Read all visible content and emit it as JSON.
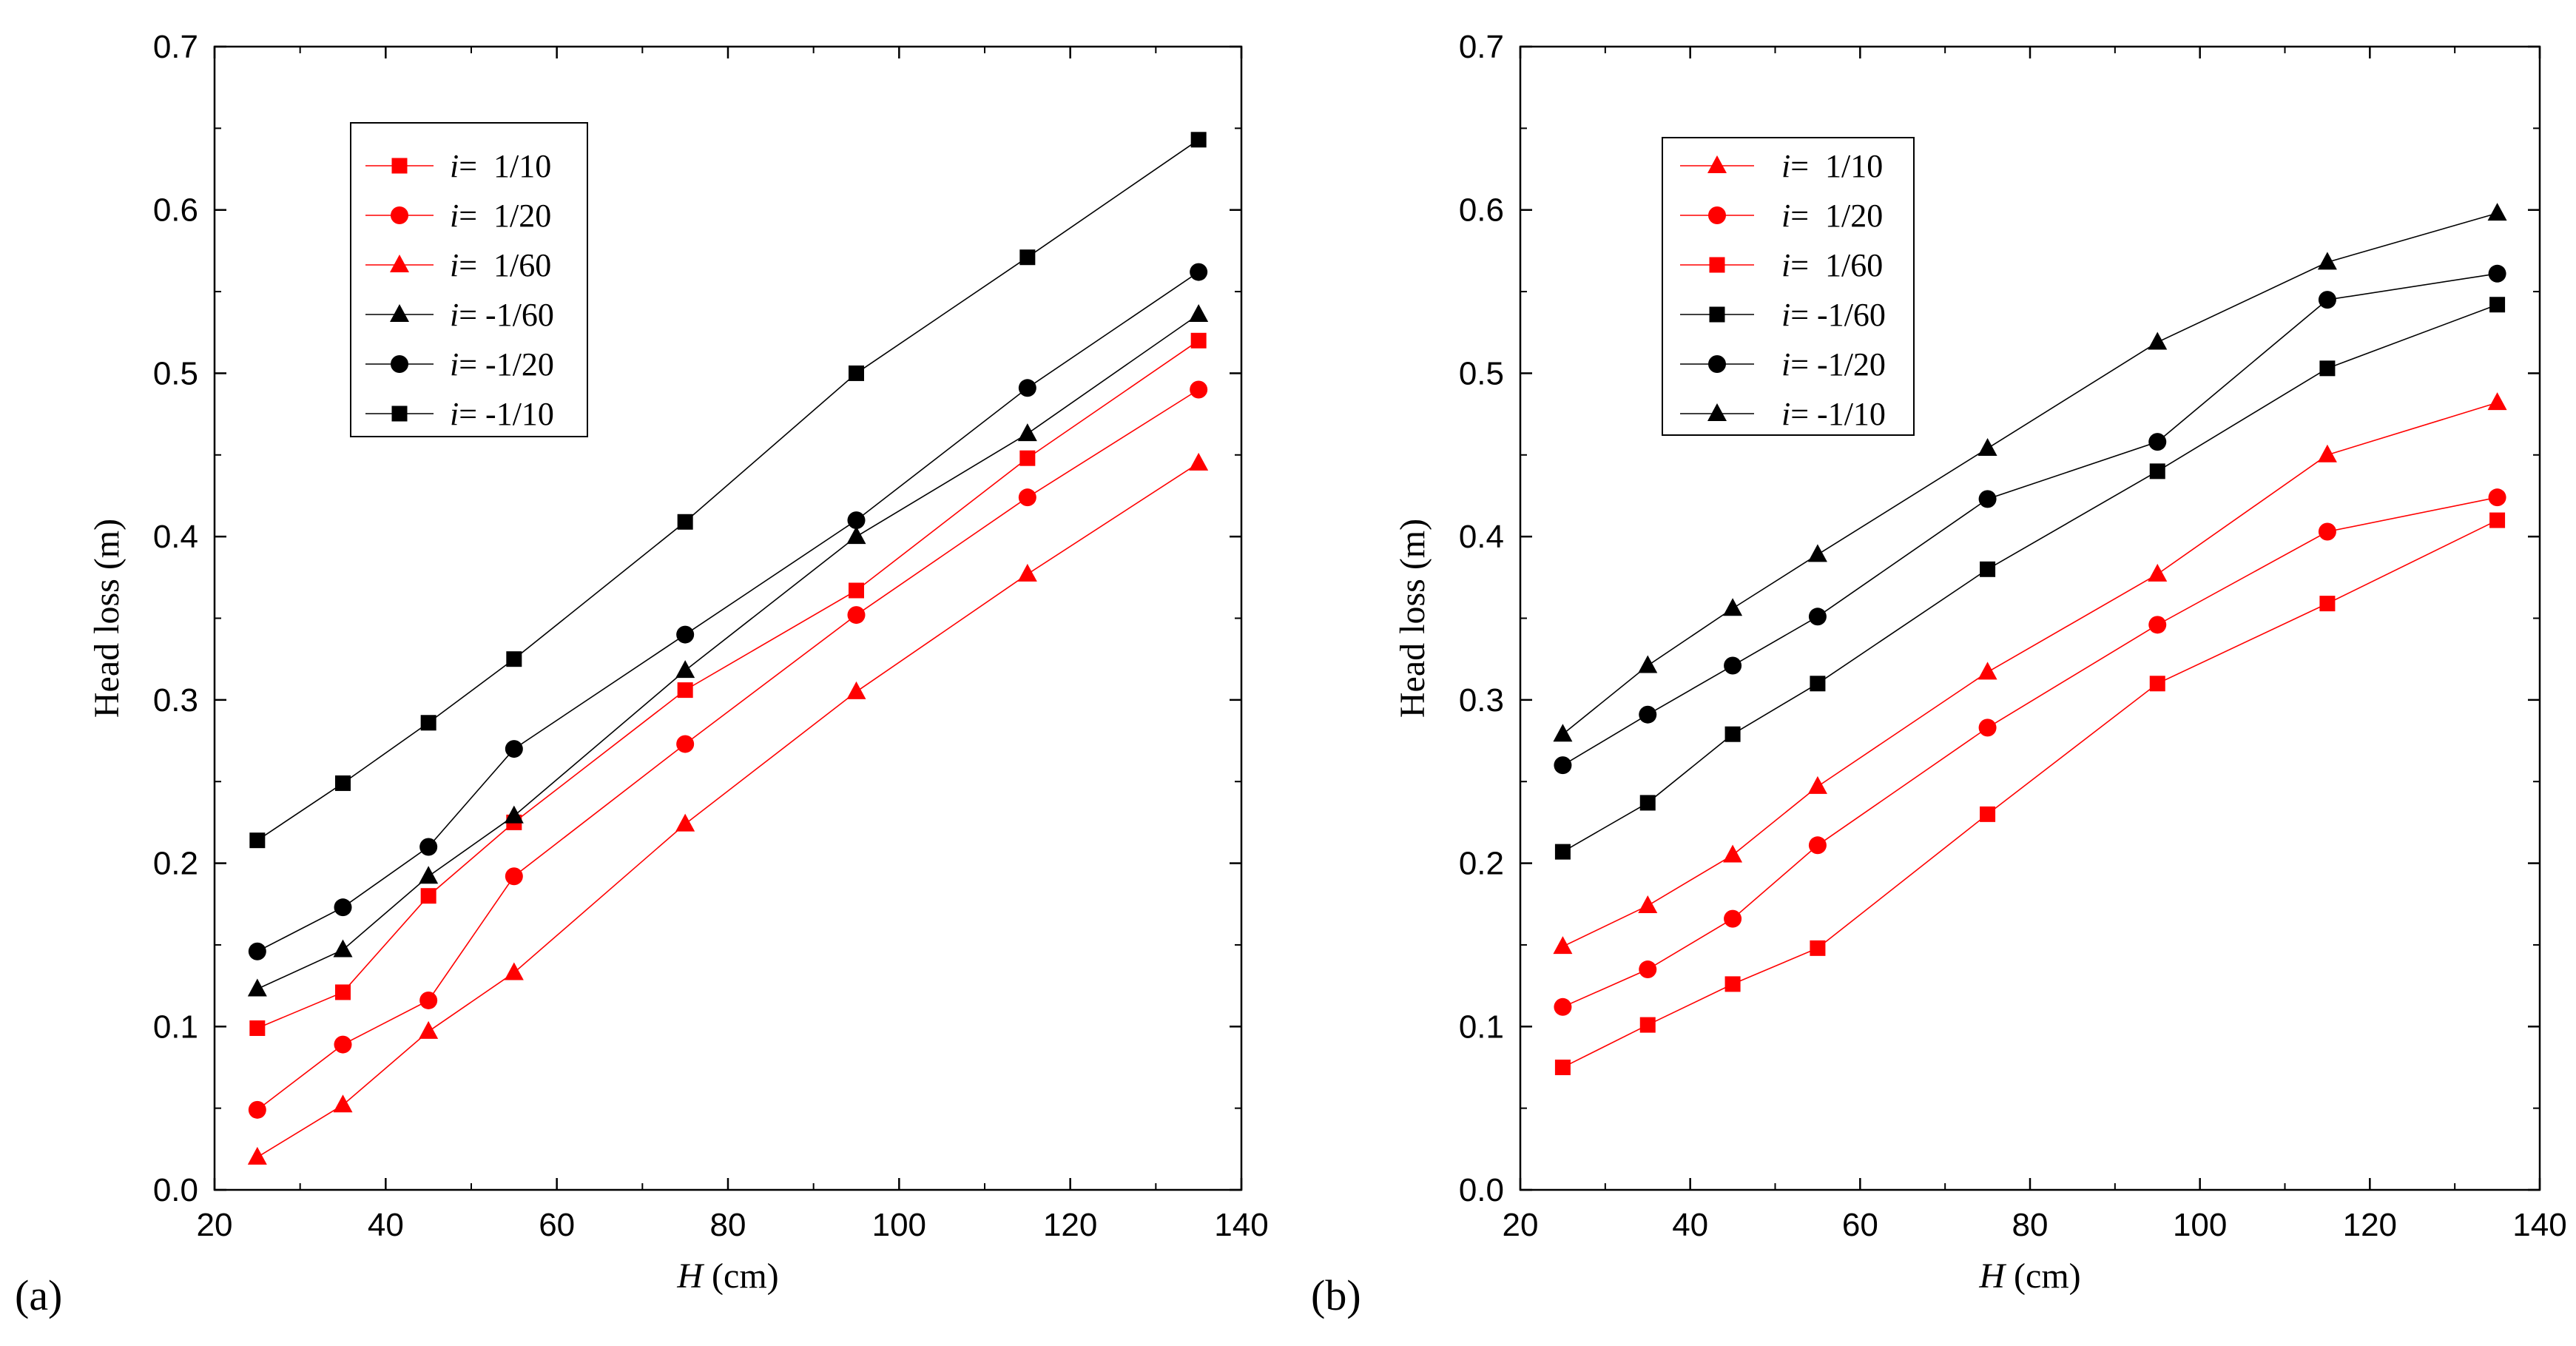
{
  "figure": {
    "panel_labels": [
      "(a)",
      "(b)"
    ]
  },
  "chart_data": [
    {
      "type": "line",
      "panel": "(a)",
      "title": "",
      "xlabel": "H (cm)",
      "xlabel_italic": "H",
      "xlabel_unit": "(cm)",
      "ylabel": "Head loss (m)",
      "xlim": [
        20,
        140
      ],
      "ylim": [
        0.0,
        0.7
      ],
      "xticks": [
        20,
        40,
        60,
        80,
        100,
        120,
        140
      ],
      "xtick_labels": [
        "20",
        "40",
        "60",
        "80",
        "100",
        "120",
        "140"
      ],
      "yticks": [
        0.0,
        0.1,
        0.2,
        0.3,
        0.4,
        0.5,
        0.6,
        0.7
      ],
      "ytick_labels": [
        "0.0",
        "0.1",
        "0.2",
        "0.3",
        "0.4",
        "0.5",
        "0.6",
        "0.7"
      ],
      "grid": false,
      "legend_position": "top-left",
      "x": [
        25,
        35,
        45,
        55,
        75,
        95,
        115,
        135
      ],
      "series": [
        {
          "name": "i=  1/10",
          "label_var": "i",
          "label_rest": "=  1/10",
          "color": "#ff0000",
          "marker": "square",
          "values": [
            0.099,
            0.121,
            0.18,
            0.225,
            0.306,
            0.367,
            0.448,
            0.52
          ]
        },
        {
          "name": "i=  1/20",
          "label_var": "i",
          "label_rest": "=  1/20",
          "color": "#ff0000",
          "marker": "circle",
          "values": [
            0.049,
            0.089,
            0.116,
            0.192,
            0.273,
            0.352,
            0.424,
            0.49
          ]
        },
        {
          "name": "i=  1/60",
          "label_var": "i",
          "label_rest": "=  1/60",
          "color": "#ff0000",
          "marker": "triangle",
          "values": [
            0.02,
            0.052,
            0.097,
            0.133,
            0.224,
            0.305,
            0.377,
            0.445
          ]
        },
        {
          "name": "i= -1/60",
          "label_var": "i",
          "label_rest": "= -1/60",
          "color": "#000000",
          "marker": "triangle",
          "values": [
            0.123,
            0.147,
            0.192,
            0.229,
            0.318,
            0.4,
            0.463,
            0.536
          ]
        },
        {
          "name": "i= -1/20",
          "label_var": "i",
          "label_rest": "= -1/20",
          "color": "#000000",
          "marker": "circle",
          "values": [
            0.146,
            0.173,
            0.21,
            0.27,
            0.34,
            0.41,
            0.491,
            0.562
          ]
        },
        {
          "name": "i= -1/10",
          "label_var": "i",
          "label_rest": "= -1/10",
          "color": "#000000",
          "marker": "square",
          "values": [
            0.214,
            0.249,
            0.286,
            0.325,
            0.409,
            0.5,
            0.571,
            0.643
          ]
        }
      ]
    },
    {
      "type": "line",
      "panel": "(b)",
      "title": "",
      "xlabel": "H (cm)",
      "xlabel_italic": "H",
      "xlabel_unit": "(cm)",
      "ylabel": "Head loss (m)",
      "xlim": [
        20,
        140
      ],
      "ylim": [
        0.0,
        0.7
      ],
      "xticks": [
        20,
        40,
        60,
        80,
        100,
        120,
        140
      ],
      "xtick_labels": [
        "20",
        "40",
        "60",
        "80",
        "100",
        "120",
        "140"
      ],
      "yticks": [
        0.0,
        0.1,
        0.2,
        0.3,
        0.4,
        0.5,
        0.6,
        0.7
      ],
      "ytick_labels": [
        "0.0",
        "0.1",
        "0.2",
        "0.3",
        "0.4",
        "0.5",
        "0.6",
        "0.7"
      ],
      "grid": false,
      "legend_position": "top-left",
      "x": [
        25,
        35,
        45,
        55,
        75,
        95,
        115,
        135
      ],
      "series": [
        {
          "name": "i=  1/10",
          "label_var": "i",
          "label_rest": "=  1/10",
          "color": "#ff0000",
          "marker": "triangle",
          "values": [
            0.149,
            0.174,
            0.205,
            0.247,
            0.317,
            0.377,
            0.45,
            0.482
          ]
        },
        {
          "name": "i=  1/20",
          "label_var": "i",
          "label_rest": "=  1/20",
          "color": "#ff0000",
          "marker": "circle",
          "values": [
            0.112,
            0.135,
            0.166,
            0.211,
            0.283,
            0.346,
            0.403,
            0.424
          ]
        },
        {
          "name": "i=  1/60",
          "label_var": "i",
          "label_rest": "=  1/60",
          "color": "#ff0000",
          "marker": "square",
          "values": [
            0.075,
            0.101,
            0.126,
            0.148,
            0.23,
            0.31,
            0.359,
            0.41
          ]
        },
        {
          "name": "i= -1/60",
          "label_var": "i",
          "label_rest": "= -1/60",
          "color": "#000000",
          "marker": "square",
          "values": [
            0.207,
            0.237,
            0.279,
            0.31,
            0.38,
            0.44,
            0.503,
            0.542
          ]
        },
        {
          "name": "i= -1/20",
          "label_var": "i",
          "label_rest": "= -1/20",
          "color": "#000000",
          "marker": "circle",
          "values": [
            0.26,
            0.291,
            0.321,
            0.351,
            0.423,
            0.458,
            0.545,
            0.561
          ]
        },
        {
          "name": "i= -1/10",
          "label_var": "i",
          "label_rest": "= -1/10",
          "color": "#000000",
          "marker": "triangle",
          "values": [
            0.279,
            0.321,
            0.356,
            0.389,
            0.454,
            0.519,
            0.568,
            0.598
          ]
        }
      ]
    }
  ]
}
